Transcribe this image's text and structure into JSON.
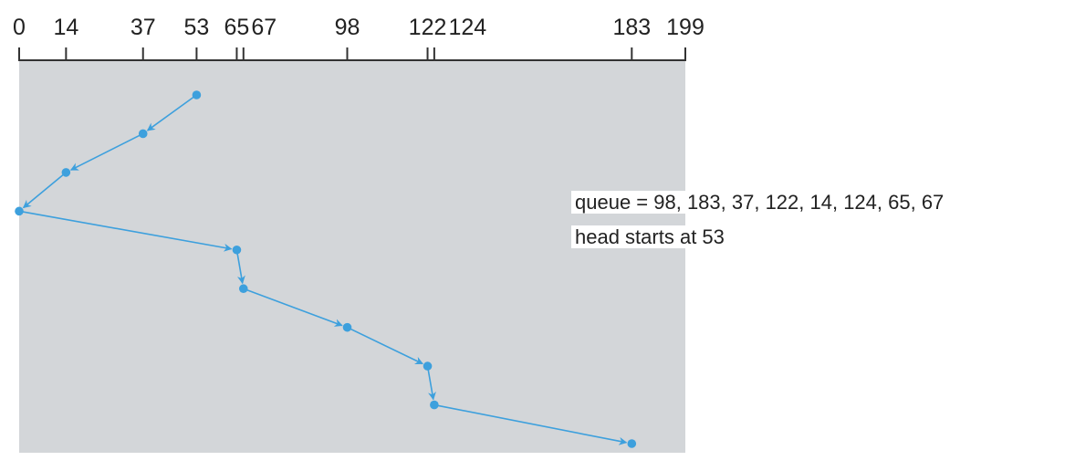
{
  "chart_data": {
    "type": "line",
    "x_axis": {
      "range": [
        0,
        199
      ],
      "tick_labels": [
        "0",
        "14",
        "37",
        "53",
        "65",
        "67",
        "98",
        "122",
        "124",
        "183",
        "199"
      ]
    },
    "head_path": [
      53,
      37,
      14,
      0,
      65,
      67,
      98,
      122,
      124,
      183
    ],
    "line_color": "#3da0dd",
    "panel_color": "#d3d6d9",
    "axis_color": "#333333"
  },
  "caption": {
    "queue_line": "queue = 98, 183, 37, 122, 14, 124, 65, 67",
    "head_line": "head starts at 53"
  }
}
